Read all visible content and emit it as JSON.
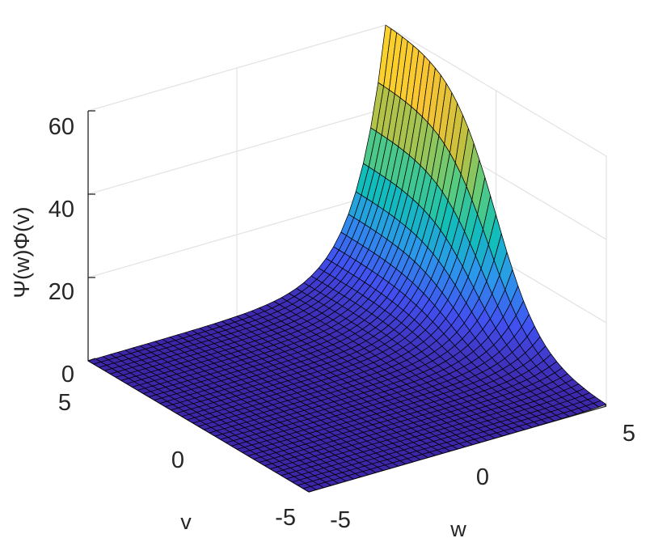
{
  "chart_data": {
    "type": "surface",
    "title": "",
    "xlabel": "w",
    "ylabel": "v",
    "zlabel": "Ψ(w)Φ(v)",
    "xlim": [
      -5,
      5
    ],
    "ylim": [
      -5,
      5
    ],
    "zlim": [
      0,
      60
    ],
    "xticks": [
      "-5",
      "0",
      "5"
    ],
    "yticks": [
      "-5",
      "0",
      "5"
    ],
    "zticks": [
      "0",
      "20",
      "40",
      "60"
    ],
    "grid": true,
    "colormap": "parula",
    "colormap_stops": [
      "#3e26a8",
      "#4250f0",
      "#2c97ec",
      "#10bfb9",
      "#5fcb7a",
      "#c2c03f",
      "#f9c433",
      "#f9fb15"
    ],
    "mesh_color": "#000000",
    "grid_points": 41,
    "surface_model": "z = exp(w) * logistic(v), max ≈ 60 at (w=5, v=5)",
    "sample_values": [
      {
        "w": -5,
        "v": -5,
        "z": 0.0
      },
      {
        "w": -5,
        "v": 5,
        "z": 0.4
      },
      {
        "w": 0,
        "v": 0,
        "z": 0.5
      },
      {
        "w": 0,
        "v": 5,
        "z": 2.4
      },
      {
        "w": 5,
        "v": -5,
        "z": 0.4
      },
      {
        "w": 5,
        "v": 0,
        "z": 30
      },
      {
        "w": 5,
        "v": 2.5,
        "z": 55
      },
      {
        "w": 5,
        "v": 5,
        "z": 60
      }
    ]
  }
}
